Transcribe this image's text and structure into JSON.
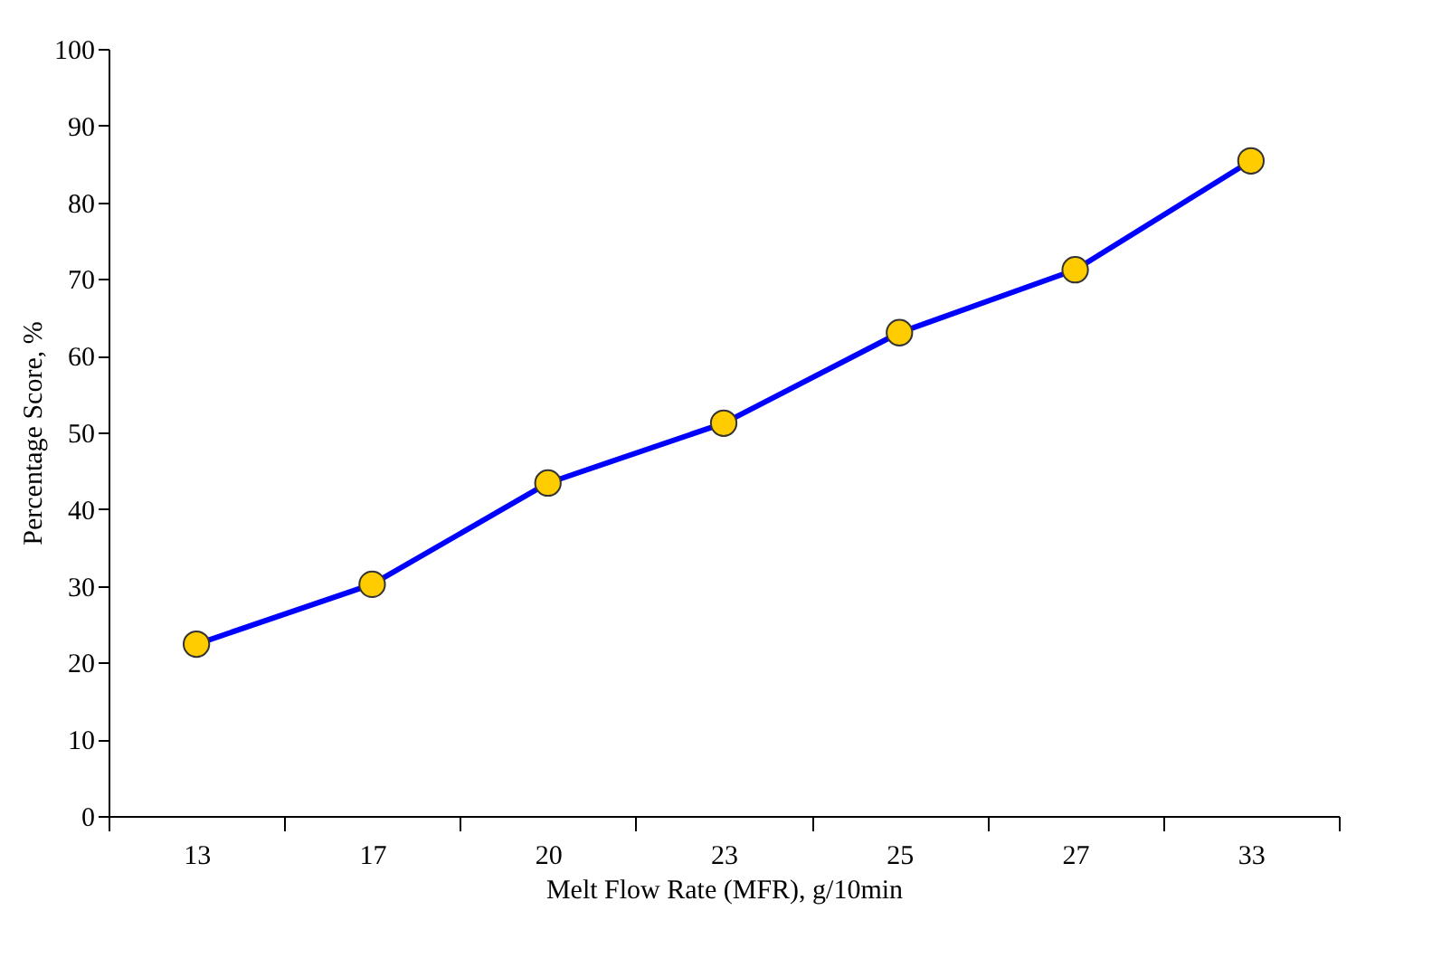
{
  "chart_data": {
    "type": "line",
    "xlabel": "Melt Flow Rate (MFR), g/10min",
    "ylabel": "Percentage Score, %",
    "categories": [
      "13",
      "17",
      "20",
      "23",
      "25",
      "27",
      "33"
    ],
    "series": [
      {
        "color": "#0000ff",
        "values": [
          22.4,
          30.2,
          43.4,
          51.2,
          63,
          71.2,
          85.4
        ]
      }
    ],
    "marker": "circle",
    "line_style": "solid",
    "ylim": [
      0,
      100
    ],
    "yticks": [
      0,
      10,
      20,
      30,
      40,
      50,
      60,
      70,
      80,
      90,
      100
    ],
    "grid": false
  }
}
